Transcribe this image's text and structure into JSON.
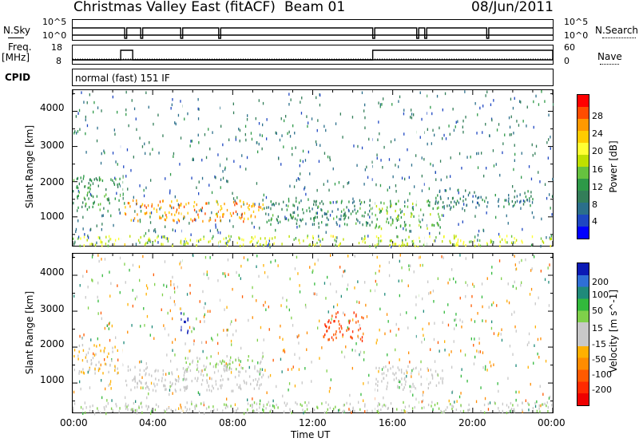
{
  "header": {
    "title": "Christmas Valley East (fitACF)",
    "beam": "Beam 01",
    "date": "08/Jun/2011"
  },
  "params": {
    "nsky_label": "N.Sky",
    "nsearch_label": "N.Search",
    "nsky_ticks": [
      "10^5",
      "10^0"
    ],
    "nsearch_ticks": [
      "10^5",
      "10^0"
    ],
    "freq_label": "Freq.",
    "freq_unit": "[MHz]",
    "freq_ticks": [
      "18",
      "8"
    ],
    "nave_label": "Nave",
    "nave_ticks": [
      "60",
      "0"
    ],
    "cpid_label": "CPID",
    "cpid_value": "normal (fast) 151 IF"
  },
  "time_axis": {
    "label": "Time UT",
    "ticks": [
      "00:00",
      "04:00",
      "08:00",
      "12:00",
      "16:00",
      "20:00",
      "00:00"
    ]
  },
  "range_axis": {
    "label": "Slant Range [km]",
    "ticks": [
      "4000",
      "3000",
      "2000",
      "1000"
    ]
  },
  "power_scale": {
    "label": "Power [dB]",
    "ticks": [
      "28",
      "24",
      "20",
      "16",
      "12",
      "8",
      "4"
    ],
    "colors": [
      "#ff0000",
      "#ff4d00",
      "#ff9900",
      "#ffcc00",
      "#ffff33",
      "#bfe000",
      "#66c23f",
      "#2e9948",
      "#337e59",
      "#2b6f8b",
      "#1e47c2",
      "#0000ff"
    ]
  },
  "velocity_scale": {
    "label": "Velocity [m s^-1]",
    "ticks": [
      "200",
      "100",
      "50",
      "15",
      "-15",
      "-50",
      "-100",
      "-200"
    ],
    "colors": [
      "#0b1ab5",
      "#2f6fd6",
      "#1f8a7a",
      "#32b93c",
      "#7fd04a",
      "#c8c8c8",
      "#c8c8c8",
      "#ffb000",
      "#ff8c00",
      "#ff5a00",
      "#ff2a00",
      "#ee0000"
    ]
  },
  "chart_data": [
    {
      "type": "heatmap",
      "title": "Power",
      "xlabel": "Time UT",
      "ylabel": "Slant Range [km]",
      "xlim": [
        "00:00",
        "24:00"
      ],
      "ylim": [
        180,
        4600
      ],
      "colorbar": {
        "label": "Power [dB]",
        "range": [
          0,
          32
        ]
      },
      "features": [
        {
          "time_range": [
            "00:00",
            "02:30"
          ],
          "range_km": [
            1200,
            2200
          ],
          "power_db": 12
        },
        {
          "time_range": [
            "02:30",
            "09:30"
          ],
          "range_km": [
            900,
            1500
          ],
          "power_db": 26
        },
        {
          "time_range": [
            "09:30",
            "15:00"
          ],
          "range_km": [
            800,
            1500
          ],
          "power_db": 10
        },
        {
          "time_range": [
            "15:00",
            "18:30"
          ],
          "range_km": [
            700,
            1500
          ],
          "power_db": 14
        },
        {
          "time_range": [
            "18:00",
            "23:00"
          ],
          "range_km": [
            1300,
            1800
          ],
          "power_db": 8
        },
        {
          "time_range": [
            "00:00",
            "24:00"
          ],
          "range_km": [
            200,
            500
          ],
          "power_db": 18
        }
      ]
    },
    {
      "type": "heatmap",
      "title": "Velocity",
      "xlabel": "Time UT",
      "ylabel": "Slant Range [km]",
      "xlim": [
        "00:00",
        "24:00"
      ],
      "ylim": [
        180,
        4600
      ],
      "colorbar": {
        "label": "Velocity [m s^-1]",
        "range": [
          -200,
          200
        ]
      },
      "features": [
        {
          "time_range": [
            "00:00",
            "02:30"
          ],
          "range_km": [
            1300,
            2100
          ],
          "velocity": -40
        },
        {
          "time_range": [
            "02:30",
            "09:30"
          ],
          "range_km": [
            800,
            1500
          ],
          "velocity": 0
        },
        {
          "time_range": [
            "05:30",
            "09:30"
          ],
          "range_km": [
            1400,
            1800
          ],
          "velocity": 40
        },
        {
          "time_range": [
            "05:20",
            "05:45"
          ],
          "range_km": [
            2300,
            3000
          ],
          "velocity": 200
        },
        {
          "time_range": [
            "12:30",
            "14:30"
          ],
          "range_km": [
            2200,
            3000
          ],
          "velocity": -150
        },
        {
          "time_range": [
            "15:00",
            "18:30"
          ],
          "range_km": [
            800,
            1500
          ],
          "velocity": 0
        },
        {
          "time_range": [
            "00:00",
            "24:00"
          ],
          "range_km": [
            200,
            500
          ],
          "velocity": 30
        }
      ]
    }
  ]
}
